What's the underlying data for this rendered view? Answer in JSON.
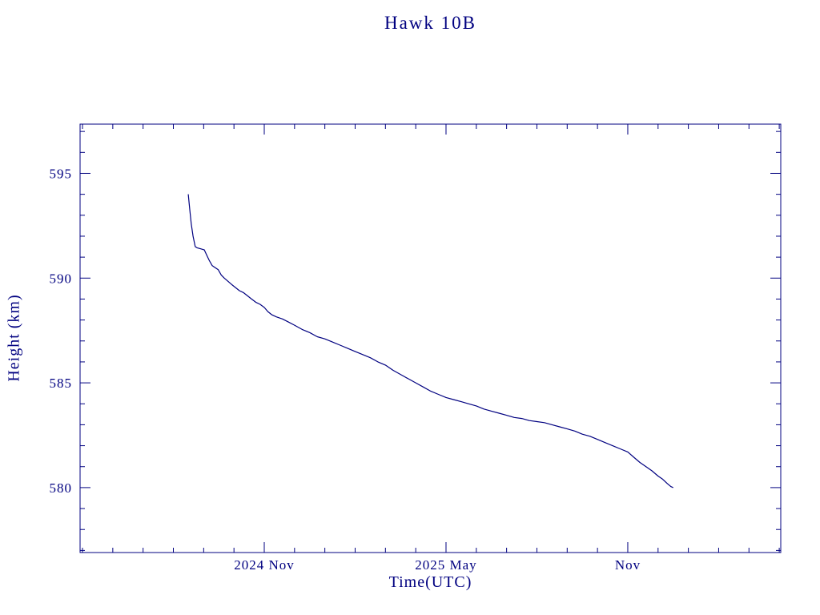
{
  "page": {
    "background_color": "#ffffff",
    "accent_color": "#000080"
  },
  "chart_data": {
    "type": "line",
    "title": "Hawk 10B",
    "xlabel": "Time(UTC)",
    "ylabel": "Height (km)",
    "x_axis_unit": "months relative to 2024-11-01",
    "xlim": [
      -6.08,
      17.05
    ],
    "ylim": [
      576.9,
      597.35
    ],
    "y_major_ticks": [
      580,
      585,
      590,
      595
    ],
    "y_minor_step": 1,
    "x_major_ticks": [
      {
        "pos": 0,
        "label": "2024 Nov"
      },
      {
        "pos": 6,
        "label": "2025 May"
      },
      {
        "pos": 12,
        "label": "Nov"
      }
    ],
    "x_minor_step": 1,
    "grid": false,
    "legend": false,
    "line_color": "#000080",
    "series": [
      {
        "name": "Hawk 10B height",
        "x": [
          -2.51,
          -2.46,
          -2.41,
          -2.35,
          -2.28,
          -2.22,
          -2.1,
          -1.98,
          -1.9,
          -1.82,
          -1.72,
          -1.62,
          -1.52,
          -1.42,
          -1.32,
          -1.2,
          -1.08,
          -0.95,
          -0.82,
          -0.68,
          -0.55,
          -0.42,
          -0.28,
          -0.14,
          0.0,
          0.12,
          0.25,
          0.4,
          0.6,
          0.8,
          1.0,
          1.25,
          1.5,
          1.75,
          2.0,
          2.25,
          2.5,
          2.75,
          3.0,
          3.25,
          3.5,
          3.75,
          4.0,
          4.25,
          4.5,
          4.75,
          5.0,
          5.25,
          5.5,
          5.75,
          6.0,
          6.25,
          6.5,
          6.75,
          7.0,
          7.25,
          7.5,
          7.75,
          8.0,
          8.25,
          8.5,
          8.75,
          9.0,
          9.25,
          9.5,
          9.75,
          10.0,
          10.25,
          10.5,
          10.75,
          11.0,
          11.25,
          11.5,
          11.75,
          12.0,
          12.2,
          12.4,
          12.6,
          12.8,
          13.0,
          13.15,
          13.3,
          13.42,
          13.5
        ],
        "y": [
          594.0,
          593.3,
          592.6,
          592.0,
          591.5,
          591.45,
          591.4,
          591.35,
          591.1,
          590.85,
          590.6,
          590.5,
          590.4,
          590.15,
          590.0,
          589.85,
          589.7,
          589.55,
          589.4,
          589.3,
          589.15,
          589.0,
          588.85,
          588.75,
          588.6,
          588.4,
          588.25,
          588.15,
          588.05,
          587.9,
          587.75,
          587.55,
          587.4,
          587.2,
          587.1,
          586.95,
          586.8,
          586.65,
          586.5,
          586.35,
          586.2,
          586.0,
          585.85,
          585.6,
          585.4,
          585.2,
          585.0,
          584.8,
          584.6,
          584.45,
          584.3,
          584.2,
          584.1,
          584.0,
          583.9,
          583.75,
          583.65,
          583.55,
          583.45,
          583.35,
          583.3,
          583.2,
          583.15,
          583.1,
          583.0,
          582.9,
          582.8,
          582.7,
          582.55,
          582.45,
          582.3,
          582.15,
          582.0,
          581.85,
          581.7,
          581.45,
          581.2,
          581.0,
          580.8,
          580.55,
          580.4,
          580.2,
          580.05,
          580.0
        ]
      }
    ]
  }
}
